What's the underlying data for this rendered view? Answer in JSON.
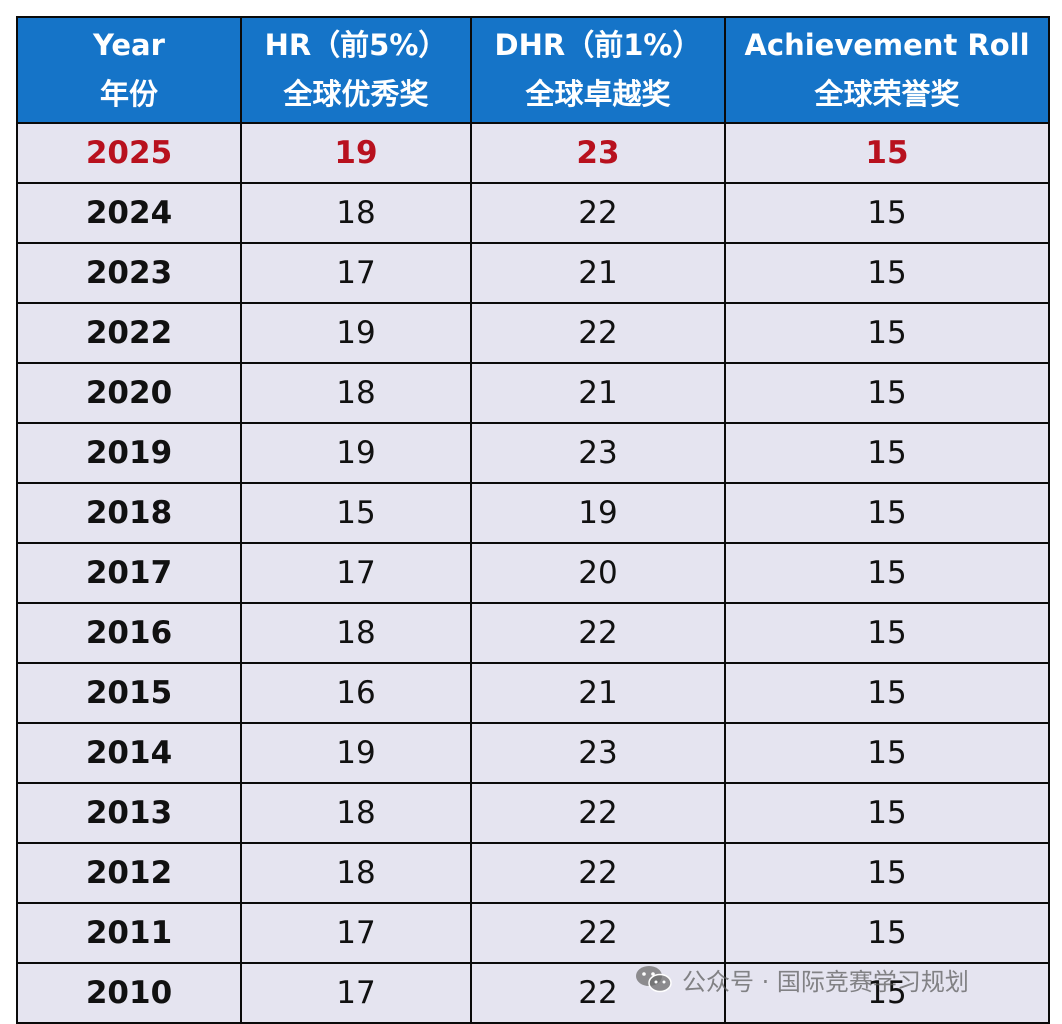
{
  "table": {
    "headers": [
      {
        "line1": "Year",
        "line2": "年份"
      },
      {
        "line1": "HR（前5%）",
        "line2": "全球优秀奖"
      },
      {
        "line1": "DHR（前1%）",
        "line2": "全球卓越奖"
      },
      {
        "line1": "Achievement Roll",
        "line2": "全球荣誉奖"
      }
    ],
    "rows": [
      {
        "year": "2025",
        "hr": "19",
        "dhr": "23",
        "ar": "15",
        "highlight": true
      },
      {
        "year": "2024",
        "hr": "18",
        "dhr": "22",
        "ar": "15"
      },
      {
        "year": "2023",
        "hr": "17",
        "dhr": "21",
        "ar": "15"
      },
      {
        "year": "2022",
        "hr": "19",
        "dhr": "22",
        "ar": "15"
      },
      {
        "year": "2020",
        "hr": "18",
        "dhr": "21",
        "ar": "15"
      },
      {
        "year": "2019",
        "hr": "19",
        "dhr": "23",
        "ar": "15"
      },
      {
        "year": "2018",
        "hr": "15",
        "dhr": "19",
        "ar": "15"
      },
      {
        "year": "2017",
        "hr": "17",
        "dhr": "20",
        "ar": "15"
      },
      {
        "year": "2016",
        "hr": "18",
        "dhr": "22",
        "ar": "15"
      },
      {
        "year": "2015",
        "hr": "16",
        "dhr": "21",
        "ar": "15"
      },
      {
        "year": "2014",
        "hr": "19",
        "dhr": "23",
        "ar": "15"
      },
      {
        "year": "2013",
        "hr": "18",
        "dhr": "22",
        "ar": "15"
      },
      {
        "year": "2012",
        "hr": "18",
        "dhr": "22",
        "ar": "15"
      },
      {
        "year": "2011",
        "hr": "17",
        "dhr": "22",
        "ar": "15"
      },
      {
        "year": "2010",
        "hr": "17",
        "dhr": "22",
        "ar": "15"
      }
    ]
  },
  "colors": {
    "header_bg": "#1574c8",
    "cell_bg": "#e5e4f0",
    "highlight_text": "#b8111e"
  },
  "watermark": {
    "icon": "wechat-icon",
    "text": "公众号 · 国际竞赛学习规划"
  }
}
